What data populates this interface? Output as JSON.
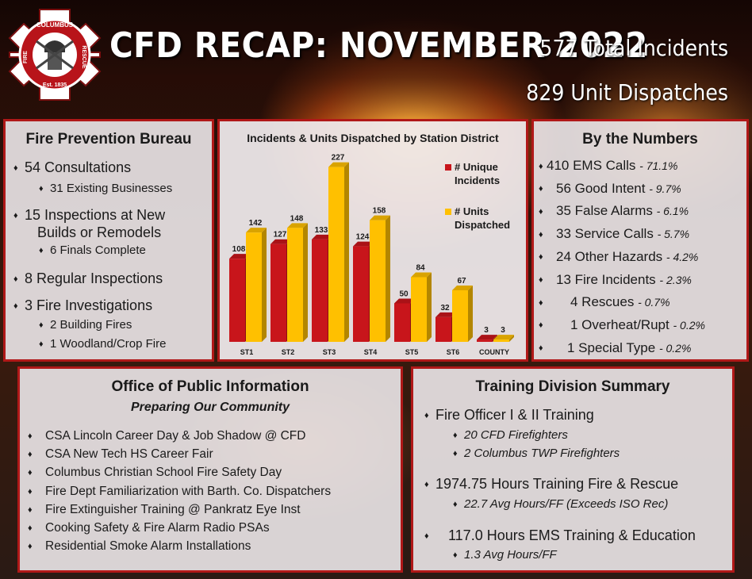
{
  "header": {
    "logo": {
      "text_top": "COLUMBUS",
      "text_left": "FIRE",
      "text_right": "RESCUE",
      "text_bottom": "Est. 1835"
    },
    "title": "CFD RECAP: NOVEMBER 2022",
    "total_incidents": "577 Total Incidents",
    "unit_dispatches": "829 Unit Dispatches"
  },
  "fire_prevention": {
    "title": "Fire Prevention Bureau",
    "items": [
      {
        "label": "54 Consultations",
        "subs": [
          "31 Existing Businesses"
        ]
      },
      {
        "label": "15 Inspections at New",
        "label2": "Builds or Remodels",
        "subs": [
          "6 Finals Complete"
        ]
      },
      {
        "label": "8 Regular Inspections",
        "subs": []
      },
      {
        "label": "3 Fire Investigations",
        "subs": [
          "2 Building Fires",
          "1 Woodland/Crop Fire"
        ]
      }
    ]
  },
  "chart_data": {
    "type": "bar",
    "title": "Incidents & Units Dispatched by Station District",
    "categories": [
      "ST1",
      "ST2",
      "ST3",
      "ST4",
      "ST5",
      "ST6",
      "COUNTY"
    ],
    "series": [
      {
        "name": "# Unique Incidents",
        "values": [
          108,
          127,
          133,
          124,
          50,
          32,
          3
        ],
        "color": "#c8151b"
      },
      {
        "name": "# Units Dispatched",
        "values": [
          142,
          148,
          227,
          158,
          84,
          67,
          3
        ],
        "color": "#ffc000"
      }
    ],
    "legend_placement": "right",
    "ylim": [
      0,
      240
    ],
    "grid": false
  },
  "by_the_numbers": {
    "title": "By the Numbers",
    "items": [
      {
        "label": "410 EMS Calls",
        "pct": "- 71.1%"
      },
      {
        "label": "56 Good Intent",
        "pct": "- 9.7%"
      },
      {
        "label": "35 False Alarms",
        "pct": "- 6.1%"
      },
      {
        "label": "33 Service Calls",
        "pct": "- 5.7%"
      },
      {
        "label": "24 Other Hazards",
        "pct": "- 4.2%"
      },
      {
        "label": "13 Fire Incidents",
        "pct": "- 2.3%"
      },
      {
        "label": "4 Rescues",
        "pct": "- 0.7%"
      },
      {
        "label": "1 Overheat/Rupt",
        "pct": "- 0.2%"
      },
      {
        "label": "1 Special Type",
        "pct": "- 0.2%"
      }
    ]
  },
  "public_information": {
    "title": "Office of Public Information",
    "subtitle": "Preparing Our Community",
    "items": [
      "CSA Lincoln Career Day & Job Shadow @ CFD",
      "CSA New Tech HS Career Fair",
      "Columbus Christian School Fire Safety Day",
      "Fire Dept Familiarization with Barth. Co. Dispatchers",
      "Fire Extinguisher Training @ Pankratz Eye Inst",
      "Cooking Safety & Fire Alarm Radio PSAs",
      "Residential Smoke Alarm Installations"
    ]
  },
  "training": {
    "title": "Training Division Summary",
    "items": [
      {
        "label": "Fire Officer I & II Training",
        "subs": [
          "20 CFD Firefighters",
          "2 Columbus TWP Firefighters"
        ]
      },
      {
        "label": "1974.75 Hours Training Fire & Rescue",
        "subs": [
          "22.7 Avg Hours/FF (Exceeds ISO Rec)"
        ]
      },
      {
        "label": "117.0 Hours EMS Training & Education",
        "subs": [
          "1.3 Avg Hours/FF"
        ]
      }
    ]
  },
  "colors": {
    "accent_red": "#b01818",
    "incidents_bar": "#c8151b",
    "units_bar": "#ffc000",
    "panel_bg": "#ecE8ea"
  }
}
